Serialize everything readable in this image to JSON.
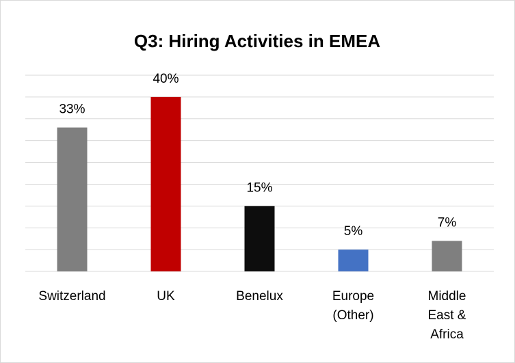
{
  "chart_data": {
    "type": "bar",
    "title": "Q3: Hiring Activities in EMEA",
    "categories": [
      "Switzerland",
      "UK",
      "Benelux",
      "Europe (Other)",
      "Middle East & Africa"
    ],
    "values": [
      33,
      40,
      15,
      5,
      7
    ],
    "value_labels": [
      "33%",
      "40%",
      "15%",
      "5%",
      "7%"
    ],
    "colors": [
      "#7f7f7f",
      "#c00000",
      "#0d0d0d",
      "#4472c4",
      "#7f7f7f"
    ],
    "ylim": [
      0,
      45
    ],
    "yticks": [
      0,
      5,
      10,
      15,
      20,
      25,
      30,
      35,
      40,
      45
    ],
    "grid": true
  }
}
